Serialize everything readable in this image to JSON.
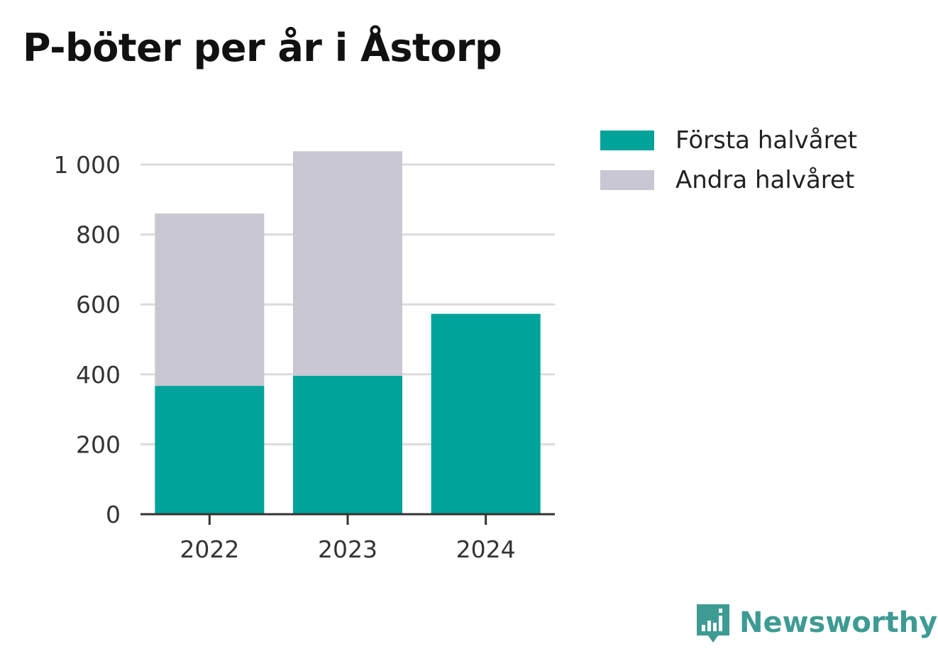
{
  "title": "P-böter per år i Åstorp",
  "brand": {
    "name": "Newsworthy",
    "color": "#3d9b93",
    "icon": "newsworthy-logo-icon"
  },
  "colors": {
    "first": "#00a39a",
    "second": "#c8c7d2",
    "grid": "#dcdcdc",
    "axis": "#333333",
    "text": "#333333"
  },
  "legend": {
    "placement": "top-right",
    "items": [
      {
        "label": "Första halvåret",
        "color": "#00a39a"
      },
      {
        "label": "Andra halvåret",
        "color": "#c8c7d2"
      }
    ]
  },
  "chart_data": {
    "type": "bar",
    "stacked": true,
    "title": "P-böter per år i Åstorp",
    "categories": [
      "2022",
      "2023",
      "2024"
    ],
    "series": [
      {
        "name": "Första halvåret",
        "values": [
          367,
          396,
          573
        ],
        "color": "#00a39a"
      },
      {
        "name": "Andra halvåret",
        "values": [
          493,
          642,
          0
        ],
        "color": "#c8c7d2"
      }
    ],
    "ylim": [
      0,
      1000
    ],
    "yticks": [
      0,
      200,
      400,
      600,
      800,
      1000
    ],
    "ytick_labels": [
      "0",
      "200",
      "400",
      "600",
      "800",
      "1 000"
    ],
    "grid": true,
    "xlabel": "",
    "ylabel": ""
  }
}
